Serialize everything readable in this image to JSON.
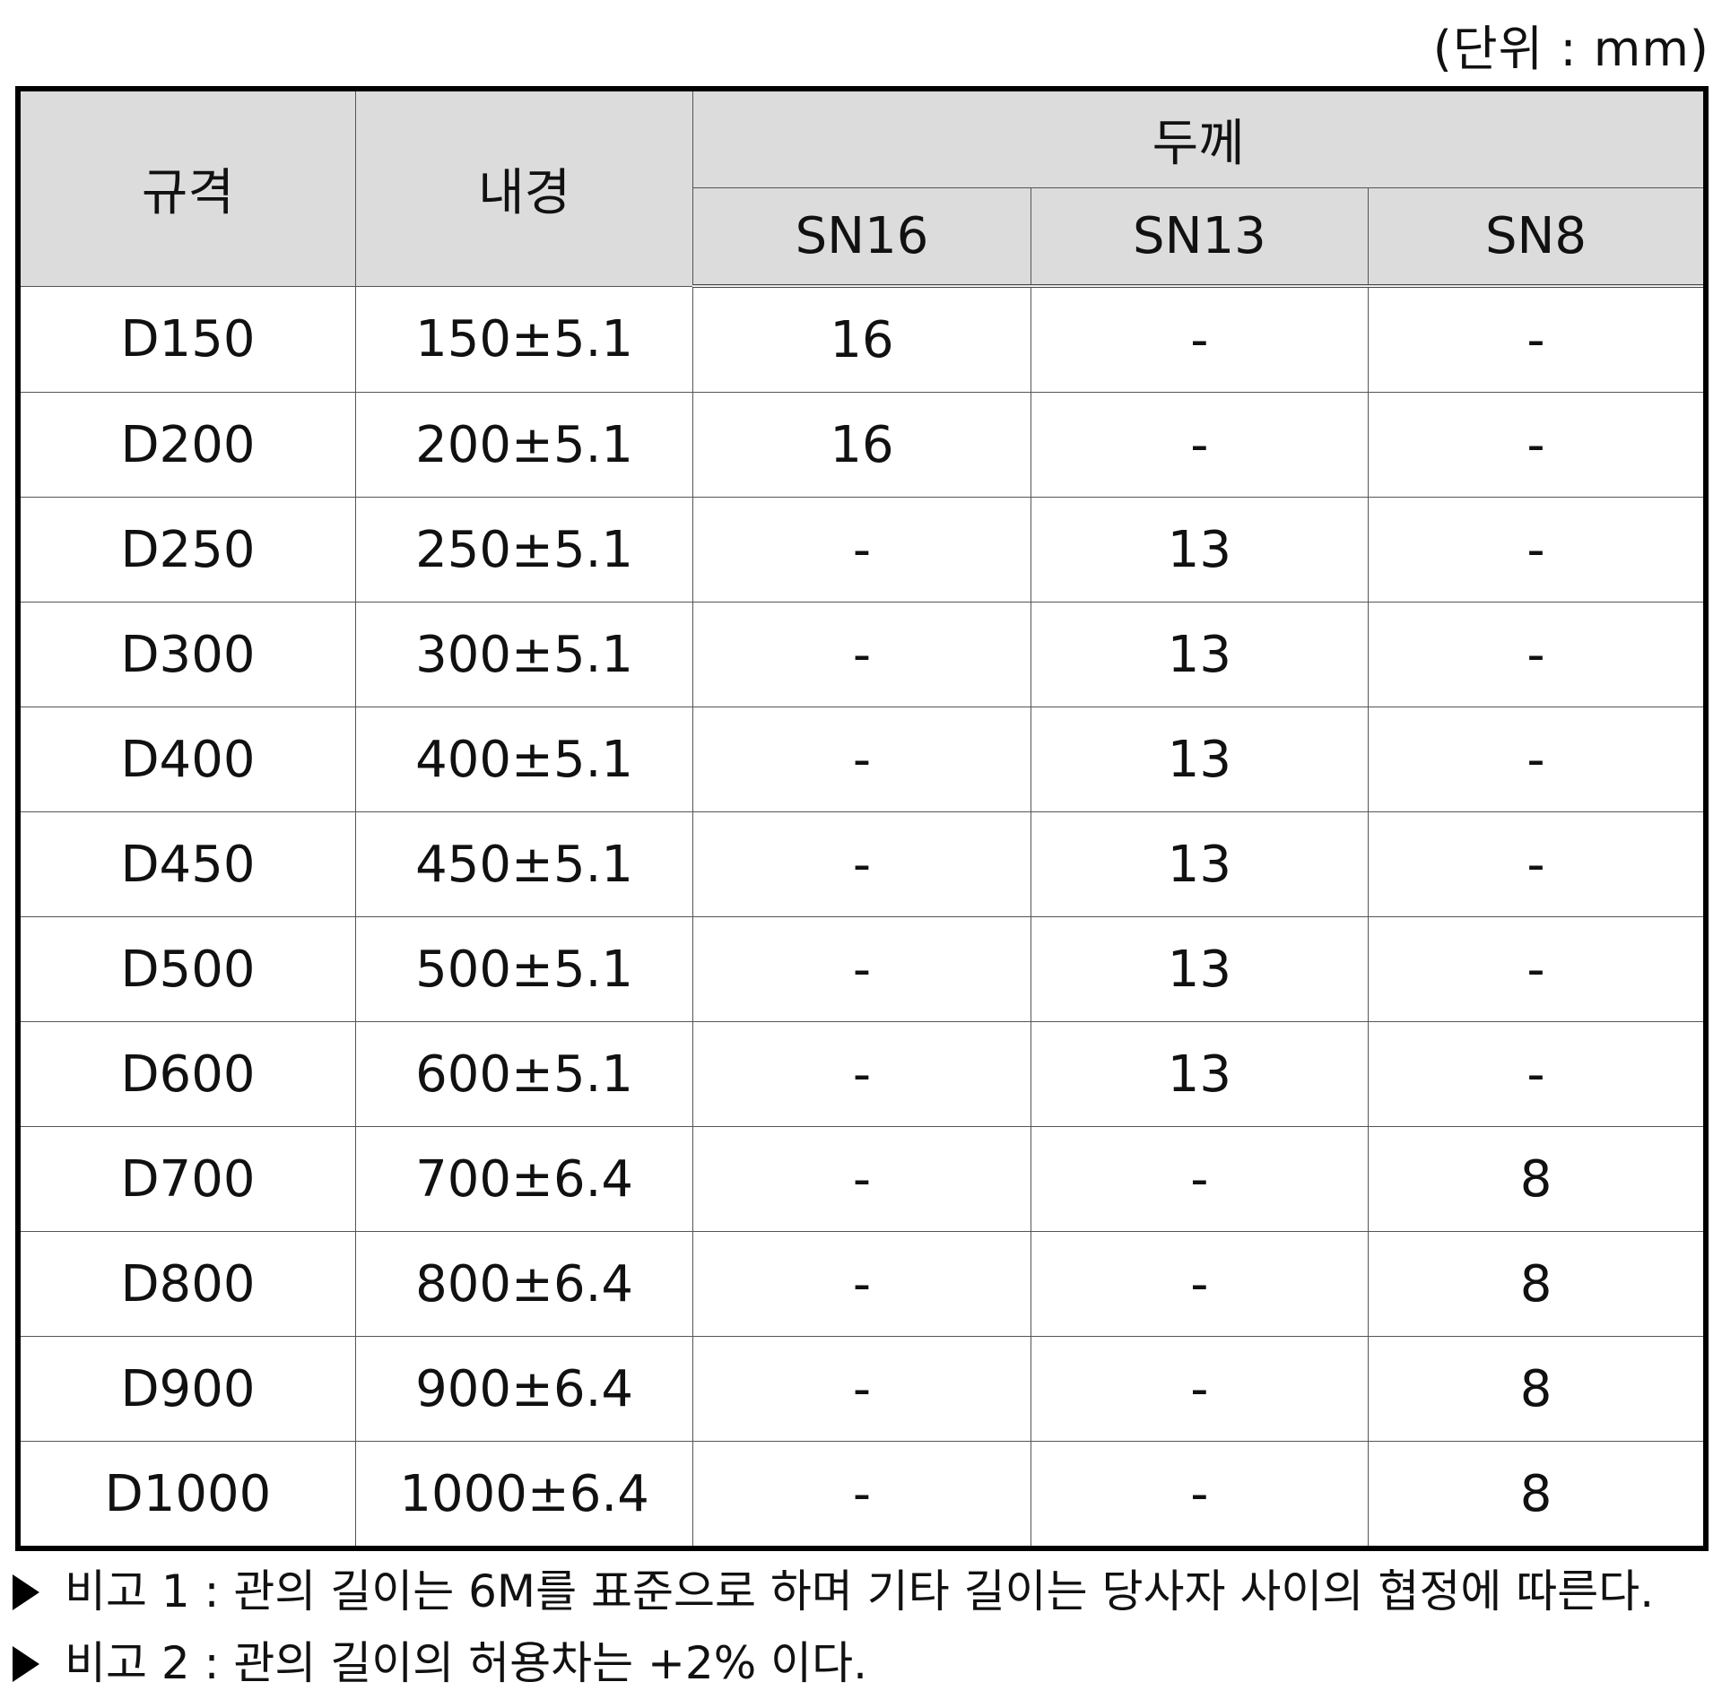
{
  "unit_label": "(단위 : mm)",
  "table": {
    "headers": {
      "spec": "규격",
      "inner_diameter": "내경",
      "thickness": "두께",
      "sn16": "SN16",
      "sn13": "SN13",
      "sn8": "SN8"
    },
    "rows": [
      [
        "D150",
        "150±5.1",
        "16",
        "-",
        "-"
      ],
      [
        "D200",
        "200±5.1",
        "16",
        "-",
        "-"
      ],
      [
        "D250",
        "250±5.1",
        "-",
        "13",
        "-"
      ],
      [
        "D300",
        "300±5.1",
        "-",
        "13",
        "-"
      ],
      [
        "D400",
        "400±5.1",
        "-",
        "13",
        "-"
      ],
      [
        "D450",
        "450±5.1",
        "-",
        "13",
        "-"
      ],
      [
        "D500",
        "500±5.1",
        "-",
        "13",
        "-"
      ],
      [
        "D600",
        "600±5.1",
        "-",
        "13",
        "-"
      ],
      [
        "D700",
        "700±6.4",
        "-",
        "-",
        "8"
      ],
      [
        "D800",
        "800±6.4",
        "-",
        "-",
        "8"
      ],
      [
        "D900",
        "900±6.4",
        "-",
        "-",
        "8"
      ],
      [
        "D1000",
        "1000±6.4",
        "-",
        "-",
        "8"
      ]
    ]
  },
  "notes": [
    "비고 1 : 관의 길이는 6M를 표준으로 하며 기타 길이는 당사자 사이의 협정에 따른다.",
    "비고 2 : 관의 길이의 허용차는 +2% 이다."
  ]
}
